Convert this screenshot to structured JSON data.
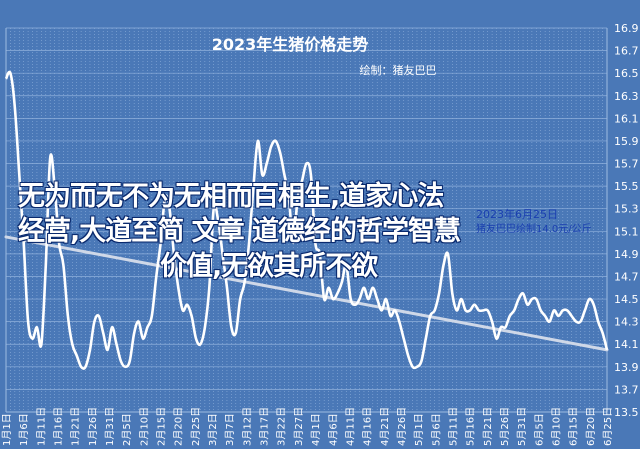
{
  "chart_data": {
    "type": "line",
    "title": "2023年生猪价格走势",
    "subtitle": "绘制：猪友巴巴",
    "ylim": [
      13.5,
      16.9
    ],
    "yticks": [
      13.5,
      13.7,
      13.9,
      14.1,
      14.3,
      14.5,
      14.7,
      14.9,
      15.1,
      15.3,
      15.5,
      15.7,
      15.9,
      16.1,
      16.3,
      16.5,
      16.7,
      16.9
    ],
    "xticks": [
      "1月1日",
      "1月6日",
      "1月11日",
      "1月16日",
      "1月21日",
      "1月26日",
      "1月31日",
      "2月5日",
      "2月10日",
      "2月15日",
      "2月20日",
      "2月25日",
      "3月2日",
      "3月7日",
      "3月12日",
      "3月17日",
      "3月22日",
      "3月27日",
      "4月1日",
      "4月6日",
      "4月11日",
      "4月16日",
      "4月21日",
      "4月26日",
      "5月1日",
      "5月6日",
      "5月11日",
      "5月16日",
      "5月21日",
      "5月26日",
      "5月31日",
      "6月5日",
      "6月10日",
      "6月15日",
      "6月20日",
      "6月25日"
    ],
    "series": [
      {
        "color": "#ffffff",
        "values": [
          16.45,
          16.5,
          16.2,
          15.6,
          15.0,
          14.3,
          14.15,
          14.25,
          14.1,
          14.8,
          15.75,
          15.5,
          15.0,
          14.8,
          14.35,
          14.1,
          14.0,
          13.9,
          13.9,
          14.05,
          14.3,
          14.35,
          14.2,
          14.05,
          14.25,
          14.1,
          13.95,
          13.9,
          13.95,
          14.2,
          14.3,
          14.15,
          14.25,
          14.35,
          14.7,
          15.0,
          15.4,
          15.3,
          14.9,
          14.6,
          14.4,
          14.45,
          14.35,
          14.15,
          14.1,
          14.25,
          14.6,
          15.3,
          15.2,
          14.9,
          14.6,
          14.25,
          14.2,
          14.5,
          14.65,
          15.0,
          15.5,
          15.9,
          15.6,
          15.7,
          15.85,
          15.9,
          15.8,
          15.6,
          15.4,
          15.0,
          15.4,
          15.55,
          15.7,
          15.6,
          15.0,
          14.9,
          14.5,
          14.6,
          14.5,
          14.55,
          14.65,
          14.8,
          14.5,
          14.45,
          14.5,
          14.6,
          14.5,
          14.6,
          14.5,
          14.4,
          14.5,
          14.35,
          14.4,
          14.3,
          14.15,
          14.0,
          13.9,
          13.9,
          13.95,
          14.15,
          14.35,
          14.4,
          14.55,
          14.8,
          14.9,
          14.55,
          14.4,
          14.5,
          14.4,
          14.4,
          14.45,
          14.4,
          14.4,
          14.4,
          14.3,
          14.15,
          14.25,
          14.25,
          14.35,
          14.4,
          14.5,
          14.55,
          14.45,
          14.5,
          14.5,
          14.4,
          14.35,
          14.3,
          14.4,
          14.35,
          14.4,
          14.4,
          14.35,
          14.3,
          14.3,
          14.4,
          14.5,
          14.45,
          14.3,
          14.2,
          14.05
        ]
      },
      {
        "color": "#cfd8e8",
        "values": [
          15.05,
          14.05
        ]
      }
    ],
    "grid": true
  },
  "overlay": {
    "line1": "无为而无不为无相而百相生,道家心法",
    "line2": "经营,大道至简 文章 道德经的哲学智慧",
    "line3": "价值,无欲其所不欲",
    "date_caption": "2023年6月25日",
    "small_caption": "猪友巴巴绘制14.0元/公斤"
  }
}
